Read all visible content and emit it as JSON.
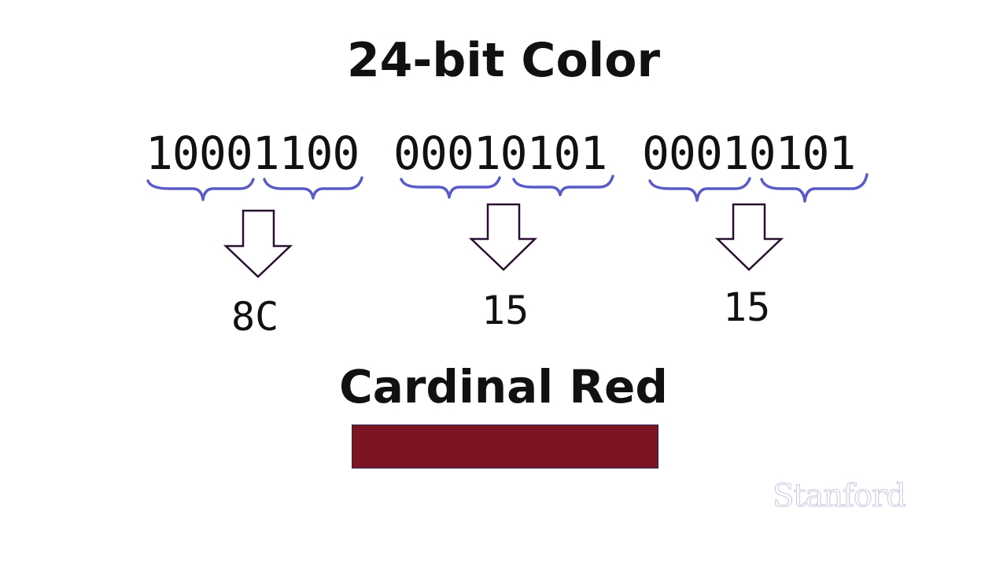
{
  "title": "24-bit Color",
  "bytes": [
    {
      "bits": "10001100",
      "hex": "8C"
    },
    {
      "bits": "00010101",
      "hex": "15"
    },
    {
      "bits": "00010101",
      "hex": "15"
    }
  ],
  "color_name": "Cardinal Red",
  "swatch_color": "#7b1521",
  "brace_color": "#5a5ac8",
  "logo_text": "Stanford"
}
